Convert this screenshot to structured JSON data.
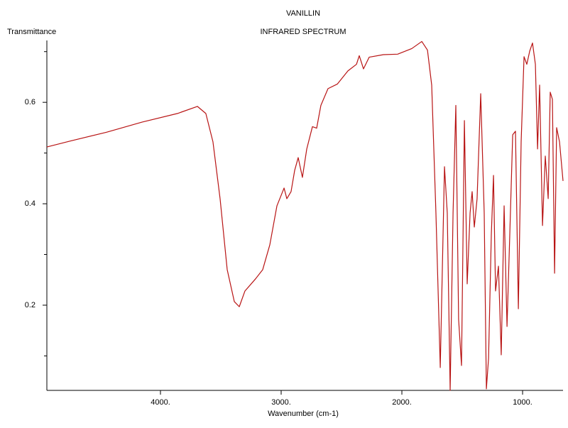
{
  "chart_data": {
    "type": "line",
    "title": "VANILLIN",
    "subtitle": "INFRARED SPECTRUM",
    "y_label": "Transmittance",
    "x_label": "Wavenumber (cm-1)",
    "color": "#b81414",
    "x_reversed": true,
    "grid": false,
    "xlim": [
      4941,
      665
    ],
    "ylim": [
      0.032,
      0.722
    ],
    "xticks": [
      {
        "value": 4000,
        "label": "4000."
      },
      {
        "value": 3000,
        "label": "3000."
      },
      {
        "value": 2000,
        "label": "2000."
      },
      {
        "value": 1000,
        "label": "1000."
      }
    ],
    "yticks": [
      0.2,
      0.4,
      0.6
    ],
    "yminor_ticks": [
      0.1,
      0.3,
      0.5,
      0.7
    ],
    "x": [
      4941,
      4741,
      4447,
      4153,
      3859,
      3694,
      3624,
      3565,
      3506,
      3447,
      3388,
      3347,
      3300,
      3212,
      3153,
      3094,
      3035,
      2976,
      2953,
      2918,
      2888,
      2859,
      2824,
      2788,
      2741,
      2706,
      2671,
      2612,
      2535,
      2447,
      2376,
      2353,
      2318,
      2271,
      2153,
      2035,
      1918,
      1835,
      1788,
      1753,
      1718,
      1682,
      1647,
      1624,
      1600,
      1576,
      1553,
      1530,
      1506,
      1482,
      1459,
      1435,
      1418,
      1400,
      1377,
      1347,
      1318,
      1300,
      1282,
      1259,
      1241,
      1224,
      1200,
      1177,
      1153,
      1129,
      1106,
      1082,
      1059,
      1035,
      1012,
      988,
      965,
      941,
      918,
      894,
      876,
      859,
      835,
      812,
      788,
      771,
      753,
      735,
      718,
      694,
      665
    ],
    "values": [
      0.512,
      0.524,
      0.541,
      0.561,
      0.578,
      0.592,
      0.578,
      0.522,
      0.41,
      0.27,
      0.207,
      0.197,
      0.228,
      0.252,
      0.27,
      0.319,
      0.396,
      0.431,
      0.41,
      0.424,
      0.466,
      0.491,
      0.452,
      0.508,
      0.552,
      0.549,
      0.594,
      0.627,
      0.636,
      0.662,
      0.675,
      0.692,
      0.666,
      0.689,
      0.694,
      0.695,
      0.706,
      0.72,
      0.703,
      0.634,
      0.382,
      0.077,
      0.473,
      0.382,
      0.032,
      0.382,
      0.594,
      0.172,
      0.081,
      0.564,
      0.242,
      0.382,
      0.424,
      0.354,
      0.41,
      0.617,
      0.382,
      0.035,
      0.095,
      0.34,
      0.456,
      0.228,
      0.277,
      0.102,
      0.396,
      0.158,
      0.34,
      0.536,
      0.543,
      0.193,
      0.522,
      0.69,
      0.675,
      0.701,
      0.717,
      0.675,
      0.508,
      0.634,
      0.357,
      0.494,
      0.41,
      0.62,
      0.606,
      0.263,
      0.55,
      0.522,
      0.445
    ]
  }
}
